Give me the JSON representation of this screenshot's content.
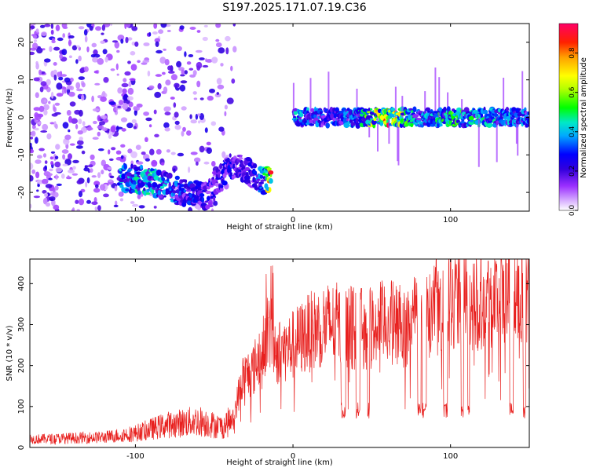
{
  "page": {
    "title": "S197.2025.171.07.19.C36"
  },
  "colors": {
    "snr_line": "#e8201e",
    "spectrogram_scatter": "#8a2be2",
    "colormap_stops": [
      "#ffffff",
      "#e6ccff",
      "#9b30ff",
      "#5a00e6",
      "#0000ff",
      "#00aaff",
      "#00e5c0",
      "#00ff00",
      "#b4ff00",
      "#ffff00",
      "#ffb000",
      "#ff3000",
      "#ff0066"
    ]
  },
  "chart_data": [
    {
      "type": "heatmap",
      "title": "S197.2025.171.07.19.C36",
      "xlabel": "Height of straight line (km)",
      "ylabel": "Frequency (Hz)",
      "xlim": [
        -167,
        150
      ],
      "ylim": [
        -25,
        25
      ],
      "xticks": [
        -100,
        0,
        100
      ],
      "yticks": [
        -20,
        -10,
        0,
        10,
        20
      ],
      "colorbar": {
        "label": "Normalized spectral amplitude",
        "range": [
          0,
          0.95
        ],
        "ticks": [
          0.0,
          0.2,
          0.4,
          0.6,
          0.8
        ]
      },
      "ridge": {
        "description_points_x": [
          -110,
          -90,
          -70,
          -55,
          -40,
          -30,
          -20,
          -14,
          -5,
          0,
          20,
          40,
          60,
          80,
          100,
          120,
          150
        ],
        "description_points_y": [
          -16,
          -17,
          -20,
          -21,
          -13,
          -14,
          -17,
          -16,
          null,
          0,
          0,
          0,
          0,
          0,
          0,
          0,
          0
        ],
        "peak_amplitude": [
          0.45,
          0.5,
          0.35,
          0.3,
          0.3,
          0.25,
          0.45,
          0.9,
          null,
          0.5,
          0.35,
          0.45,
          0.95,
          0.4,
          0.6,
          0.5,
          0.4
        ]
      }
    },
    {
      "type": "line",
      "xlabel": "Height of straight line (km)",
      "ylabel": "SNR (10 * v/v)",
      "xlim": [
        -167,
        150
      ],
      "ylim": [
        0,
        460
      ],
      "xticks": [
        -100,
        0,
        100
      ],
      "yticks": [
        0,
        100,
        200,
        300,
        400
      ],
      "envelope": {
        "x": [
          -167,
          -120,
          -100,
          -80,
          -60,
          -45,
          -38,
          -32,
          -25,
          -18,
          -14,
          -10,
          0,
          10,
          20,
          30,
          40,
          50,
          60,
          70,
          80,
          90,
          100,
          110,
          120,
          130,
          140,
          150
        ],
        "y": [
          20,
          25,
          35,
          55,
          65,
          50,
          70,
          170,
          190,
          260,
          290,
          230,
          250,
          280,
          300,
          300,
          290,
          290,
          310,
          290,
          340,
          340,
          370,
          360,
          360,
          370,
          370,
          360
        ]
      },
      "notes": "noisy trace with deep dropouts to ~60-100 between ~30 and 150 km"
    }
  ]
}
